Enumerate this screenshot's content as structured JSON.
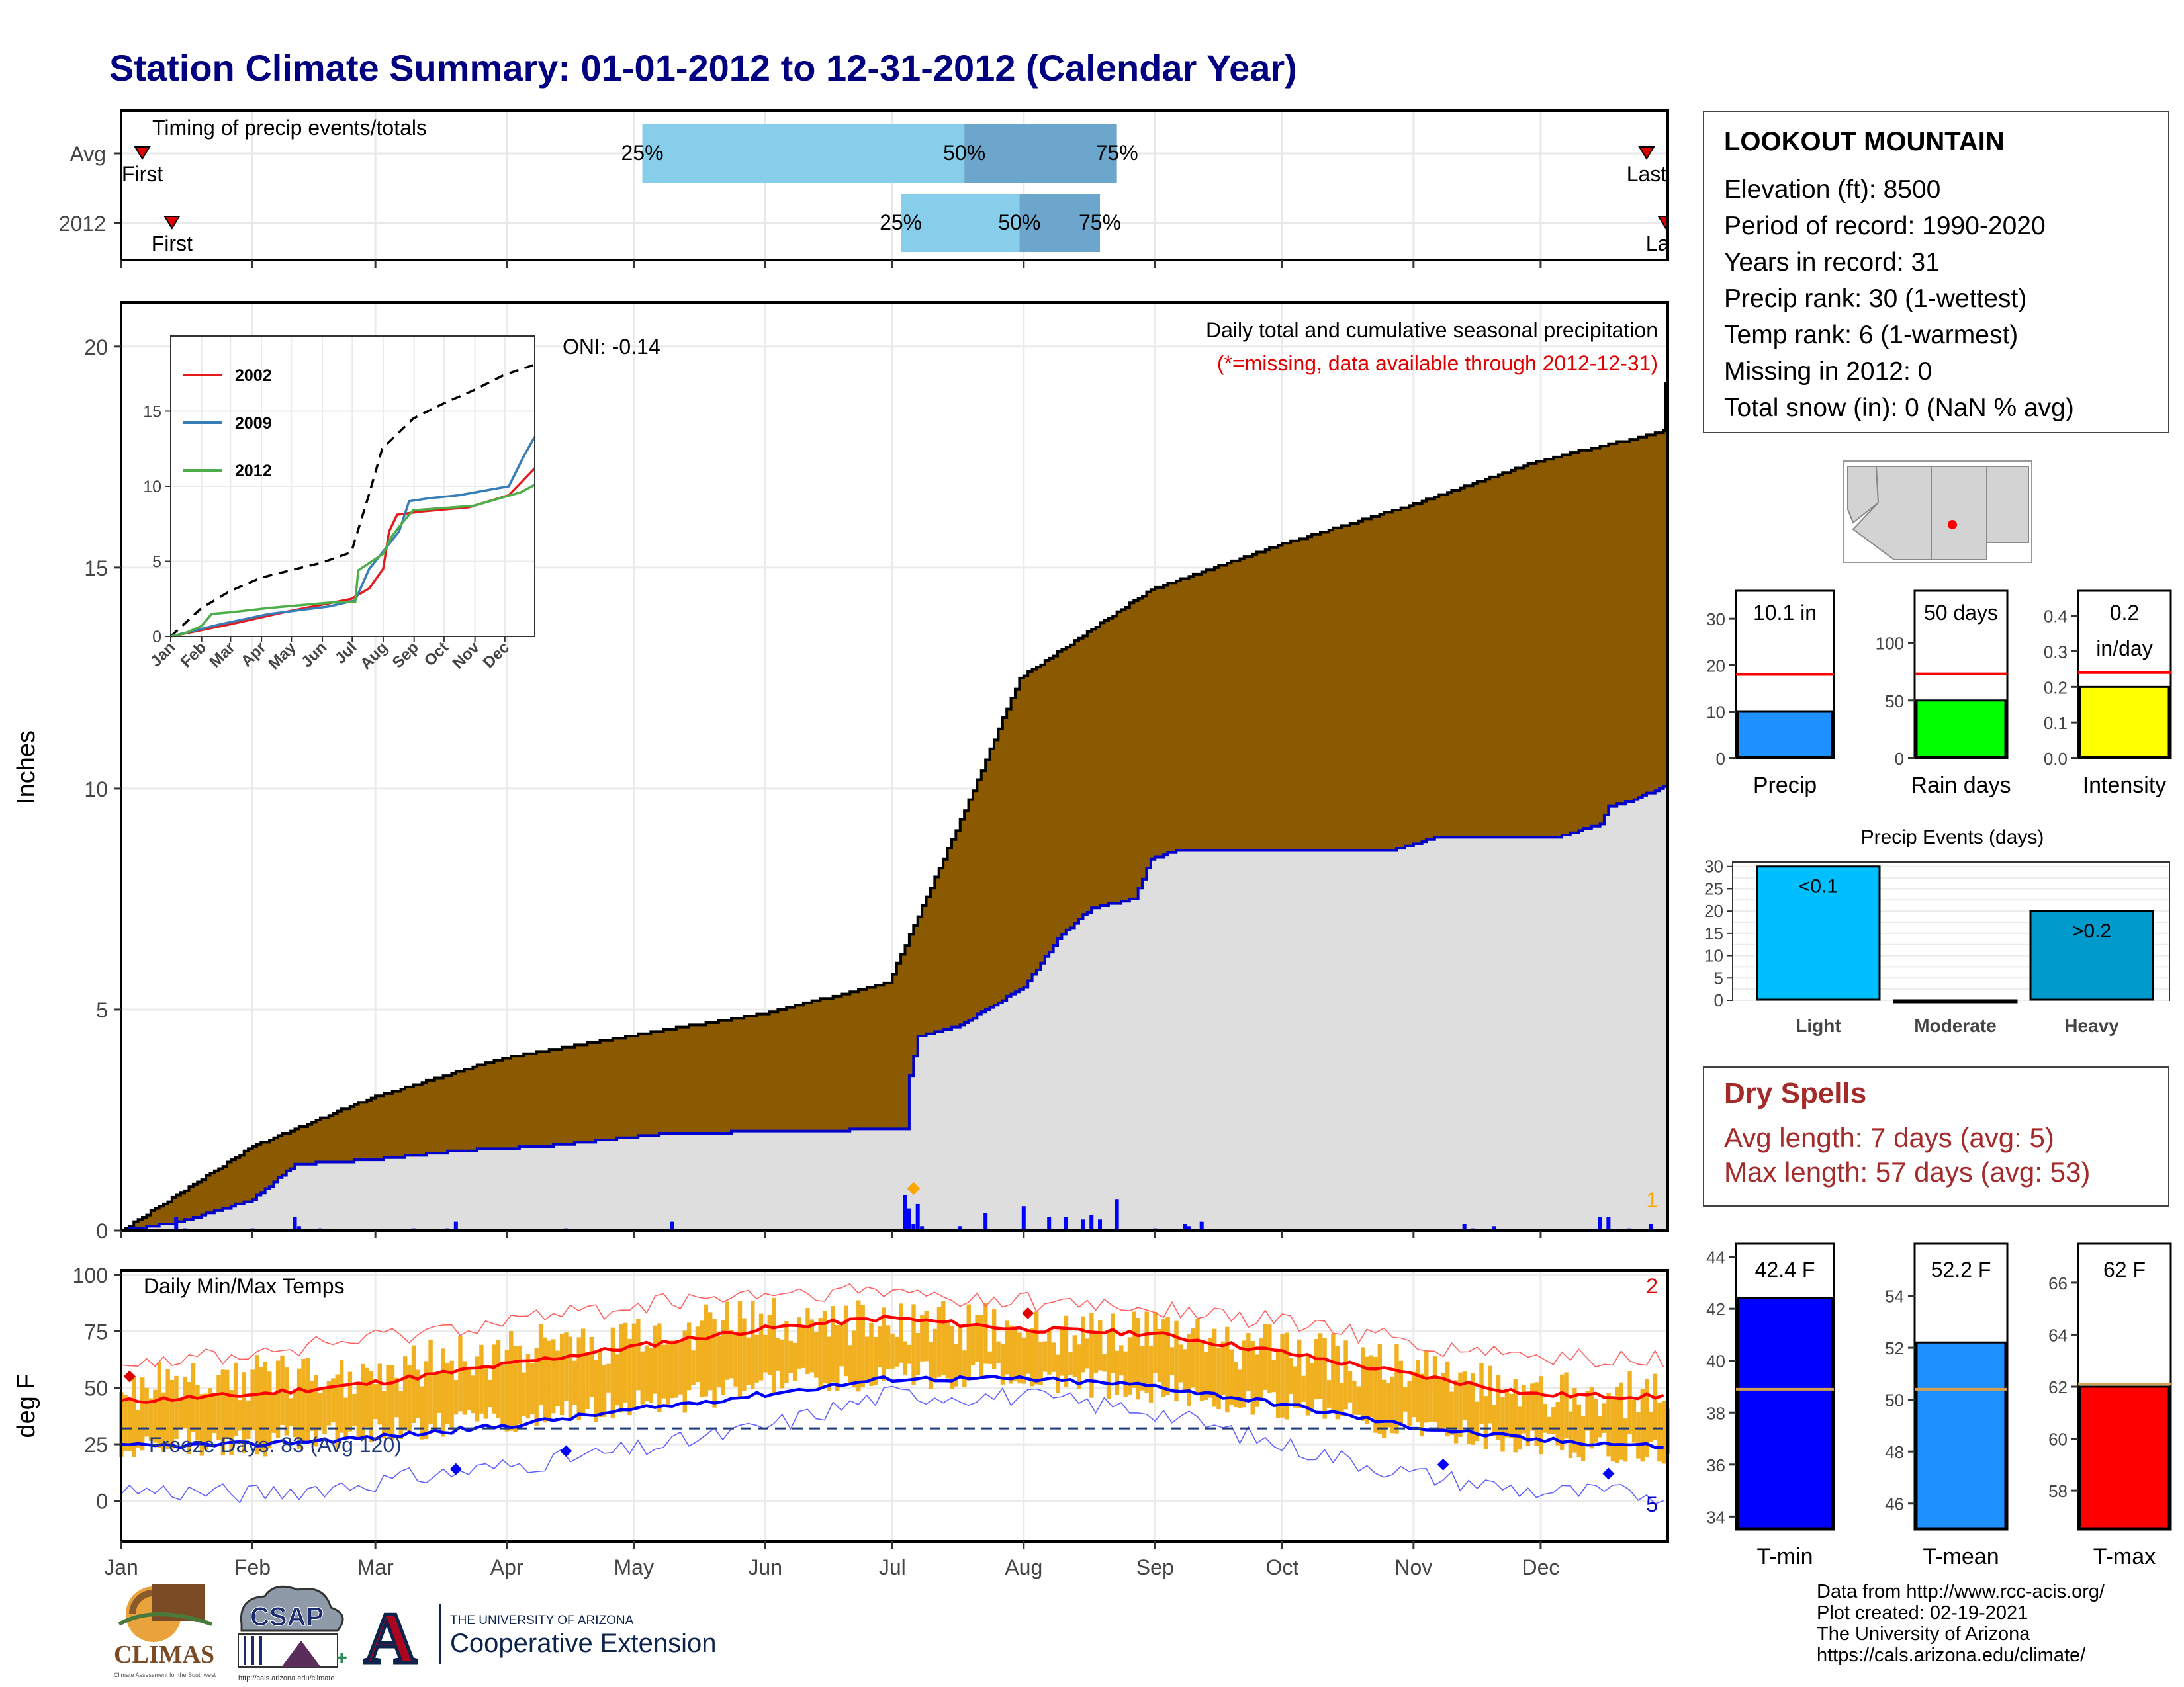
{
  "title": "Station Climate Summary: 01-01-2012 to 12-31-2012 (Calendar Year)",
  "timing": {
    "label": "Timing of precip events/totals",
    "rows": [
      {
        "name": "Avg",
        "first_label": "First",
        "last_label": "Last",
        "first_doy": 6,
        "last_doy": 361,
        "p25": 124,
        "p50": 200,
        "p75": 236,
        "p25_label": "25%",
        "p50_label": "50%",
        "p75_label": "75%"
      },
      {
        "name": "2012",
        "first_label": "First",
        "last_label": "Last",
        "first_doy": 13,
        "last_doy": 366,
        "p25": 185,
        "p50": 213,
        "p75": 232,
        "p25_label": "25%",
        "p50_label": "50%",
        "p75_label": "75%"
      }
    ]
  },
  "precip_panel": {
    "ylabel": "Inches",
    "ylim": [
      0,
      21
    ],
    "yticks": [
      0,
      5,
      10,
      15,
      20
    ],
    "title_text": "Daily total and cumulative seasonal precipitation",
    "missing_note": "(*=missing, data available through 2012-12-31)",
    "oni": "ONI: -0.14",
    "corner_count": "1"
  },
  "inset": {
    "yticks": [
      0,
      5,
      10,
      15
    ],
    "months": [
      "Jan",
      "Feb",
      "Mar",
      "Apr",
      "May",
      "Jun",
      "Jul",
      "Aug",
      "Sep",
      "Oct",
      "Nov",
      "Dec"
    ],
    "legend": [
      {
        "name": "2002",
        "color": "#e41a1c"
      },
      {
        "name": "2009",
        "color": "#377eb8"
      },
      {
        "name": "2012",
        "color": "#4daf4a"
      }
    ]
  },
  "temp_panel": {
    "ylabel": "deg F",
    "title_text": "Daily Min/Max Temps",
    "ylim": [
      -18,
      102
    ],
    "yticks": [
      0,
      25,
      50,
      75,
      100
    ],
    "freeze_text": "Freeze Days: 83 (Avg 120)",
    "freeze_line": 32,
    "max_count": "2",
    "min_count": "5"
  },
  "months": [
    "Jan",
    "Feb",
    "Mar",
    "Apr",
    "May",
    "Jun",
    "Jul",
    "Aug",
    "Sep",
    "Oct",
    "Nov",
    "Dec"
  ],
  "station": {
    "name": "LOOKOUT MOUNTAIN",
    "rows": [
      "Elevation (ft): 8500",
      "Period of record: 1990-2020",
      "Years in record: 31",
      "Precip rank: 30 (1-wettest)",
      "Temp rank: 6 (1-warmest)",
      "Missing in 2012: 0",
      "Total snow (in): 0 (NaN % avg)"
    ]
  },
  "precip_bars": [
    {
      "label": "Precip",
      "value": 10.1,
      "avg": 18,
      "value_label": "10.1 in",
      "value_label2": "",
      "color": "#1e90ff",
      "ylim": [
        0,
        36
      ],
      "yticks": [
        0,
        10,
        20,
        30
      ]
    },
    {
      "label": "Rain days",
      "value": 50,
      "avg": 73,
      "value_label": "50 days",
      "value_label2": "",
      "color": "#00ff00",
      "ylim": [
        0,
        145
      ],
      "yticks": [
        0,
        50,
        100
      ]
    },
    {
      "label": "Intensity",
      "value": 0.2,
      "avg": 0.24,
      "value_label": "0.2",
      "value_label2": "in/day",
      "color": "#ffff00",
      "ylim": [
        0,
        0.47
      ],
      "yticks": [
        0.0,
        0.1,
        0.2,
        0.3,
        0.4
      ]
    }
  ],
  "events": {
    "title": "Precip Events (days)",
    "ylim": [
      0,
      31
    ],
    "yticks": [
      0,
      5,
      10,
      15,
      20,
      25,
      30
    ],
    "bars": [
      {
        "label": "Light",
        "value": 30,
        "value_label": "<0.1",
        "color": "#00bfff"
      },
      {
        "label": "Moderate",
        "value": 0,
        "value_label": "",
        "color": "#1e90ff"
      },
      {
        "label": "Heavy",
        "value": 20,
        "value_label": ">0.2",
        "color": "#009acd"
      }
    ]
  },
  "dry_spells": {
    "title": "Dry Spells",
    "avg_text": "Avg length: 7 days (avg: 5)",
    "max_text": "Max length: 57 days (avg: 53)"
  },
  "temp_bars": [
    {
      "label": "T-min",
      "value": 42.4,
      "avg": 38.9,
      "value_label": "42.4 F",
      "color": "#0000ff",
      "ylim": [
        33.5,
        44.5
      ],
      "yticks": [
        34,
        36,
        38,
        40,
        42,
        44
      ]
    },
    {
      "label": "T-mean",
      "value": 52.2,
      "avg": 50.4,
      "value_label": "52.2 F",
      "color": "#1e90ff",
      "ylim": [
        45,
        56
      ],
      "yticks": [
        46,
        48,
        50,
        52,
        54
      ]
    },
    {
      "label": "T-max",
      "value": 62,
      "avg": 62.1,
      "value_label": "62 F",
      "color": "#ff0000",
      "ylim": [
        56.5,
        67.5
      ],
      "yticks": [
        58,
        60,
        62,
        64,
        66
      ]
    }
  ],
  "footer": {
    "lines": [
      "Data from http://www.rcc-acis.org/",
      "Plot created: 02-19-2021",
      "The University of Arizona",
      "https://cals.arizona.edu/climate/"
    ],
    "logos": {
      "climas": "CLIMAS",
      "climas_sub": "Climate Assessment for the Southwest",
      "csap": "CSAP",
      "csap_url": "http://cals.arizona.edu/climate",
      "ua_letter": "A",
      "ua_line1": "THE UNIVERSITY OF ARIZONA",
      "ua_line2": "Cooperative Extension"
    }
  },
  "chart_data": [
    {
      "type": "area",
      "title": "Daily total and cumulative seasonal precipitation",
      "ylabel": "Inches",
      "ylim": [
        0,
        21
      ],
      "x_unit": "day of year",
      "avg_cumulative": {
        "x": [
          1,
          32,
          60,
          91,
          121,
          152,
          182,
          200,
          213,
          244,
          274,
          305,
          335,
          366
        ],
        "y": [
          0,
          1.9,
          3.0,
          3.9,
          4.4,
          4.9,
          5.6,
          9.5,
          12.5,
          14.5,
          15.5,
          16.4,
          17.4,
          18.1
        ]
      },
      "cumulative_2012": {
        "x": [
          1,
          15,
          32,
          42,
          60,
          80,
          100,
          130,
          160,
          186,
          187,
          189,
          198,
          214,
          222,
          230,
          240,
          244,
          250,
          260,
          280,
          300,
          305,
          311,
          320,
          340,
          350,
          352,
          357,
          366
        ],
        "y": [
          0,
          0.2,
          0.7,
          1.5,
          1.6,
          1.8,
          1.9,
          2.2,
          2.25,
          2.3,
          3.5,
          4.4,
          4.6,
          5.5,
          6.6,
          7.3,
          7.5,
          8.4,
          8.6,
          8.6,
          8.6,
          8.6,
          8.7,
          8.9,
          8.9,
          8.9,
          9.2,
          9.6,
          9.7,
          10.1
        ]
      },
      "daily_2012": {
        "x": [
          5,
          14,
          16,
          25,
          32,
          42,
          43,
          48,
          70,
          78,
          80,
          106,
          131,
          186,
          187,
          188,
          189,
          190,
          199,
          205,
          214,
          220,
          224,
          228,
          230,
          232,
          236,
          245,
          252,
          253,
          256,
          318,
          320,
          325,
          350,
          352,
          357,
          362
        ],
        "y": [
          0.05,
          0.3,
          0.05,
          0.04,
          0.05,
          0.3,
          0.1,
          0.05,
          0.05,
          0.05,
          0.2,
          0.05,
          0.2,
          0.8,
          0.5,
          0.15,
          0.6,
          0.1,
          0.1,
          0.4,
          0.55,
          0.3,
          0.3,
          0.25,
          0.35,
          0.25,
          0.7,
          0.05,
          0.15,
          0.1,
          0.2,
          0.15,
          0.05,
          0.1,
          0.3,
          0.3,
          0.05,
          0.15
        ]
      }
    },
    {
      "type": "line",
      "title": "",
      "months": [
        "Jan",
        "Feb",
        "Mar",
        "Apr",
        "May",
        "Jun",
        "Jul",
        "Aug",
        "Sep",
        "Oct",
        "Nov",
        "Dec"
      ],
      "ylim": [
        0,
        20
      ],
      "series": [
        {
          "name": "",
          "style": "dashed",
          "color": "#000000",
          "x": [
            1,
            32,
            60,
            91,
            121,
            152,
            182,
            200,
            213,
            244,
            274,
            305,
            335,
            366
          ],
          "y": [
            0,
            1.9,
            3.0,
            3.9,
            4.4,
            4.9,
            5.6,
            9.5,
            12.5,
            14.5,
            15.5,
            16.4,
            17.4,
            18.1
          ]
        },
        {
          "name": "2002",
          "color": "#e41a1c",
          "x": [
            1,
            60,
            121,
            182,
            200,
            214,
            220,
            228,
            250,
            300,
            340,
            366
          ],
          "y": [
            0,
            0.8,
            1.7,
            2.5,
            3.2,
            4.5,
            7.0,
            8.1,
            8.3,
            8.6,
            9.4,
            11.2
          ]
        },
        {
          "name": "2009",
          "color": "#377eb8",
          "x": [
            1,
            50,
            100,
            160,
            186,
            200,
            205,
            212,
            230,
            240,
            260,
            290,
            340,
            355,
            366
          ],
          "y": [
            0,
            0.8,
            1.5,
            2.0,
            2.4,
            4.5,
            4.9,
            5.5,
            7.0,
            9.0,
            9.2,
            9.4,
            10.0,
            12.0,
            13.3
          ]
        },
        {
          "name": "2012",
          "color": "#4daf4a",
          "x": [
            1,
            15,
            32,
            42,
            60,
            100,
            160,
            186,
            189,
            214,
            222,
            230,
            244,
            305,
            352,
            366
          ],
          "y": [
            0,
            0.2,
            0.7,
            1.5,
            1.6,
            1.9,
            2.25,
            2.3,
            4.4,
            5.5,
            6.6,
            7.3,
            8.4,
            8.7,
            9.6,
            10.1
          ]
        }
      ]
    },
    {
      "type": "line",
      "title": "Daily Min/Max Temps",
      "ylabel": "deg F",
      "ylim": [
        -18,
        102
      ],
      "series": [
        {
          "name": "",
          "color": "#ff0000",
          "x": [
            1,
            32,
            60,
            91,
            121,
            152,
            182,
            213,
            244,
            274,
            305,
            335,
            366
          ],
          "y": [
            44,
            47,
            52,
            60,
            68,
            76,
            81,
            76,
            74,
            66,
            56,
            47,
            46
          ]
        },
        {
          "name": "",
          "color": "#0000ff",
          "x": [
            1,
            32,
            60,
            91,
            121,
            152,
            182,
            213,
            244,
            274,
            305,
            335,
            366
          ],
          "y": [
            24,
            25,
            28,
            33,
            40,
            47,
            54,
            54,
            51,
            43,
            33,
            27,
            24
          ]
        },
        {
          "name": "",
          "color": "#ff6060",
          "x": [
            1,
            32,
            60,
            91,
            121,
            152,
            182,
            213,
            244,
            274,
            305,
            335,
            366
          ],
          "y": [
            62,
            65,
            72,
            80,
            86,
            91,
            92,
            88,
            85,
            80,
            70,
            63,
            62
          ]
        },
        {
          "name": "",
          "color": "#6060ff",
          "x": [
            1,
            32,
            60,
            91,
            121,
            152,
            182,
            213,
            244,
            274,
            305,
            335,
            366
          ],
          "y": [
            5,
            3,
            8,
            15,
            22,
            32,
            47,
            46,
            40,
            25,
            12,
            4,
            3
          ]
        }
      ],
      "tmax_2012": {
        "x": [
          1,
          32,
          60,
          91,
          121,
          152,
          182,
          213,
          244,
          274,
          305,
          335,
          366
        ],
        "y": [
          50,
          54,
          57,
          65,
          72,
          80,
          79,
          76,
          73,
          67,
          58,
          48,
          46
        ]
      },
      "tmin_2012": {
        "x": [
          1,
          32,
          60,
          91,
          121,
          152,
          182,
          213,
          244,
          274,
          305,
          335,
          366
        ],
        "y": [
          26,
          26,
          30,
          36,
          43,
          50,
          56,
          54,
          50,
          42,
          33,
          26,
          22
        ]
      }
    },
    {
      "type": "bar",
      "categories": [
        "Precip",
        "Rain days",
        "Intensity"
      ],
      "values": [
        10.1,
        50,
        0.2
      ],
      "averages": [
        18,
        73,
        0.24
      ]
    },
    {
      "type": "bar",
      "title": "Precip Events (days)",
      "categories": [
        "Light",
        "Moderate",
        "Heavy"
      ],
      "values": [
        30,
        0,
        20
      ]
    },
    {
      "type": "bar",
      "categories": [
        "T-min",
        "T-mean",
        "T-max"
      ],
      "values": [
        42.4,
        52.2,
        62
      ],
      "averages": [
        38.9,
        50.4,
        62.1
      ]
    }
  ]
}
